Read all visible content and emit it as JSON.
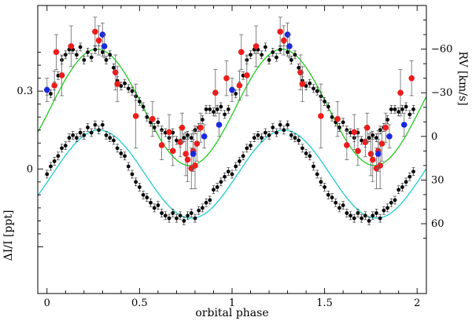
{
  "chart_data": {
    "type": "scatter",
    "xlabel": "orbital phase",
    "ylabel_left": "ΔI/I [ppt]",
    "ylabel_right": "RV [km/s]",
    "xlim": [
      -0.05,
      2.05
    ],
    "x_ticks": [
      0,
      0.5,
      1,
      1.5,
      2
    ],
    "x_tick_labels": [
      "0",
      "0.5",
      "1",
      "1.5",
      "2"
    ],
    "left_axis": {
      "range": [
        -0.48,
        0.63
      ],
      "ticks": [
        0,
        0.3
      ],
      "tick_labels": [
        "0",
        "0.3"
      ]
    },
    "right_axis": {
      "range": [
        108,
        -90
      ],
      "ticks": [
        -60,
        -30,
        0,
        30,
        60
      ],
      "tick_labels": [
        "−60",
        "−30",
        "0",
        "30",
        "60"
      ]
    },
    "colors": {
      "rv_model": "#22cc22",
      "rv_red": "#ee1c1c",
      "rv_blue": "#1a28dd",
      "lc_model": "#22cccc",
      "lc_points": "#000000"
    },
    "rv_model": {
      "gamma": -20,
      "amplitude": 40,
      "phase_of_max_velocity": 0.77
    },
    "rv_red_points": [
      {
        "x": 0.04,
        "y": -35,
        "err": 10
      },
      {
        "x": 0.05,
        "y": -58,
        "err": 12
      },
      {
        "x": 0.08,
        "y": -42,
        "err": 14
      },
      {
        "x": 0.13,
        "y": -62,
        "err": 14
      },
      {
        "x": 0.26,
        "y": -72,
        "err": 10
      },
      {
        "x": 0.28,
        "y": -66,
        "err": 10
      },
      {
        "x": 0.37,
        "y": -44,
        "err": 12
      },
      {
        "x": 0.38,
        "y": -36,
        "err": 12
      },
      {
        "x": 0.48,
        "y": -14,
        "err": 22
      },
      {
        "x": 0.57,
        "y": -12,
        "err": 12
      },
      {
        "x": 0.62,
        "y": 6,
        "err": 10
      },
      {
        "x": 0.66,
        "y": -3,
        "err": 12
      },
      {
        "x": 0.68,
        "y": 10,
        "err": 10
      },
      {
        "x": 0.72,
        "y": 4,
        "err": 10
      },
      {
        "x": 0.73,
        "y": -6,
        "err": 10
      },
      {
        "x": 0.75,
        "y": 12,
        "err": 15
      },
      {
        "x": 0.76,
        "y": 16,
        "err": 15
      },
      {
        "x": 0.78,
        "y": 22,
        "err": 14
      },
      {
        "x": 0.79,
        "y": 10,
        "err": 14
      },
      {
        "x": 0.8,
        "y": 20,
        "err": 16
      },
      {
        "x": 0.81,
        "y": 5,
        "err": 12
      },
      {
        "x": 0.83,
        "y": -6,
        "err": 10
      },
      {
        "x": 0.91,
        "y": -30,
        "err": 16
      },
      {
        "x": 0.97,
        "y": -40,
        "err": 12
      }
    ],
    "rv_blue_points": [
      {
        "x": 0.0,
        "y": -32,
        "err": 8
      },
      {
        "x": 0.3,
        "y": -70,
        "err": 8
      },
      {
        "x": 0.31,
        "y": -62,
        "err": 8
      },
      {
        "x": 0.79,
        "y": 12,
        "err": 10
      },
      {
        "x": 0.85,
        "y": 0,
        "err": 8
      },
      {
        "x": 0.93,
        "y": -8,
        "err": 8
      }
    ],
    "lc_model": {
      "offset": -0.02,
      "amplitude": 0.17,
      "phase_of_max": 0.28
    },
    "lc_fitted_points": [
      {
        "x": 0.0,
        "y": -0.02
      },
      {
        "x": 0.02,
        "y": 0.01
      },
      {
        "x": 0.04,
        "y": 0.03
      },
      {
        "x": 0.06,
        "y": 0.05
      },
      {
        "x": 0.08,
        "y": 0.08
      },
      {
        "x": 0.1,
        "y": 0.09
      },
      {
        "x": 0.12,
        "y": 0.12
      },
      {
        "x": 0.14,
        "y": 0.13
      },
      {
        "x": 0.16,
        "y": 0.12
      },
      {
        "x": 0.18,
        "y": 0.14
      },
      {
        "x": 0.2,
        "y": 0.13
      },
      {
        "x": 0.22,
        "y": 0.16
      },
      {
        "x": 0.24,
        "y": 0.14
      },
      {
        "x": 0.26,
        "y": 0.17
      },
      {
        "x": 0.28,
        "y": 0.15
      },
      {
        "x": 0.3,
        "y": 0.17
      },
      {
        "x": 0.32,
        "y": 0.13
      },
      {
        "x": 0.34,
        "y": 0.12
      },
      {
        "x": 0.36,
        "y": 0.11
      },
      {
        "x": 0.38,
        "y": 0.08
      },
      {
        "x": 0.4,
        "y": 0.06
      },
      {
        "x": 0.42,
        "y": 0.05
      },
      {
        "x": 0.44,
        "y": 0.01
      },
      {
        "x": 0.46,
        "y": -0.02
      },
      {
        "x": 0.48,
        "y": -0.05
      },
      {
        "x": 0.5,
        "y": -0.07
      },
      {
        "x": 0.52,
        "y": -0.1
      },
      {
        "x": 0.54,
        "y": -0.11
      },
      {
        "x": 0.56,
        "y": -0.13
      },
      {
        "x": 0.58,
        "y": -0.15
      },
      {
        "x": 0.6,
        "y": -0.14
      },
      {
        "x": 0.62,
        "y": -0.17
      },
      {
        "x": 0.64,
        "y": -0.18
      },
      {
        "x": 0.66,
        "y": -0.19
      },
      {
        "x": 0.68,
        "y": -0.17
      },
      {
        "x": 0.7,
        "y": -0.19
      },
      {
        "x": 0.72,
        "y": -0.18
      },
      {
        "x": 0.74,
        "y": -0.2
      },
      {
        "x": 0.76,
        "y": -0.18
      },
      {
        "x": 0.78,
        "y": -0.17
      },
      {
        "x": 0.8,
        "y": -0.19
      },
      {
        "x": 0.82,
        "y": -0.16
      },
      {
        "x": 0.84,
        "y": -0.15
      },
      {
        "x": 0.86,
        "y": -0.13
      },
      {
        "x": 0.88,
        "y": -0.12
      },
      {
        "x": 0.9,
        "y": -0.08
      },
      {
        "x": 0.92,
        "y": -0.07
      },
      {
        "x": 0.94,
        "y": -0.05
      },
      {
        "x": 0.96,
        "y": -0.03
      },
      {
        "x": 0.98,
        "y": -0.01
      }
    ],
    "lc_raw_points": [
      {
        "x": 0.0,
        "y": 0.3
      },
      {
        "x": 0.02,
        "y": 0.29
      },
      {
        "x": 0.04,
        "y": 0.32
      },
      {
        "x": 0.06,
        "y": 0.36
      },
      {
        "x": 0.08,
        "y": 0.42
      },
      {
        "x": 0.1,
        "y": 0.44
      },
      {
        "x": 0.12,
        "y": 0.46
      },
      {
        "x": 0.14,
        "y": 0.46
      },
      {
        "x": 0.16,
        "y": 0.44
      },
      {
        "x": 0.18,
        "y": 0.47
      },
      {
        "x": 0.2,
        "y": 0.42
      },
      {
        "x": 0.22,
        "y": 0.45
      },
      {
        "x": 0.24,
        "y": 0.43
      },
      {
        "x": 0.26,
        "y": 0.46
      },
      {
        "x": 0.28,
        "y": 0.49
      },
      {
        "x": 0.3,
        "y": 0.45
      },
      {
        "x": 0.32,
        "y": 0.42
      },
      {
        "x": 0.34,
        "y": 0.44
      },
      {
        "x": 0.36,
        "y": 0.39
      },
      {
        "x": 0.38,
        "y": 0.34
      },
      {
        "x": 0.4,
        "y": 0.32
      },
      {
        "x": 0.42,
        "y": 0.33
      },
      {
        "x": 0.44,
        "y": 0.31
      },
      {
        "x": 0.46,
        "y": 0.3
      },
      {
        "x": 0.48,
        "y": 0.28
      },
      {
        "x": 0.5,
        "y": 0.26
      },
      {
        "x": 0.52,
        "y": 0.24
      },
      {
        "x": 0.54,
        "y": 0.2
      },
      {
        "x": 0.56,
        "y": 0.18
      },
      {
        "x": 0.58,
        "y": 0.16
      },
      {
        "x": 0.6,
        "y": 0.18
      },
      {
        "x": 0.62,
        "y": 0.15
      },
      {
        "x": 0.64,
        "y": 0.14
      },
      {
        "x": 0.66,
        "y": 0.12
      },
      {
        "x": 0.68,
        "y": 0.14
      },
      {
        "x": 0.7,
        "y": 0.11
      },
      {
        "x": 0.72,
        "y": 0.1
      },
      {
        "x": 0.74,
        "y": 0.12
      },
      {
        "x": 0.76,
        "y": 0.13
      },
      {
        "x": 0.78,
        "y": 0.12
      },
      {
        "x": 0.8,
        "y": 0.15
      },
      {
        "x": 0.82,
        "y": 0.16
      },
      {
        "x": 0.84,
        "y": 0.19
      },
      {
        "x": 0.86,
        "y": 0.23
      },
      {
        "x": 0.88,
        "y": 0.23
      },
      {
        "x": 0.9,
        "y": 0.22
      },
      {
        "x": 0.92,
        "y": 0.23
      },
      {
        "x": 0.94,
        "y": 0.24
      },
      {
        "x": 0.96,
        "y": 0.21
      },
      {
        "x": 0.98,
        "y": 0.23
      }
    ]
  }
}
